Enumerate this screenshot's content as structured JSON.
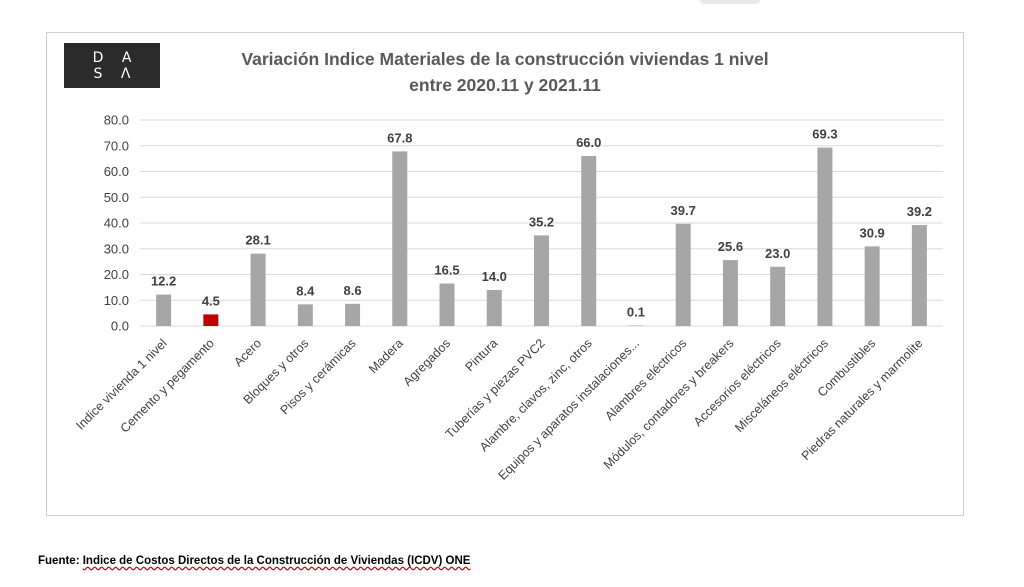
{
  "logo": {
    "line1": "D A",
    "line2": "S Λ"
  },
  "title": {
    "line1": "Variación Indice Materiales de la construcción viviendas 1 nivel",
    "line2": "entre 2020.11 y 2021.11"
  },
  "footer": {
    "label": "Fuente: ",
    "source": "Indice de Costos Directos de la Construcción de Viviendas (ICDV) ONE"
  },
  "colors": {
    "bar_default": "#a6a6a6",
    "bar_highlight": "#c00000",
    "grid": "#d9d9d9",
    "axis_text": "#404040",
    "label_text": "#404040"
  },
  "chart_data": {
    "type": "bar",
    "title": "Variación Indice Materiales de la construcción viviendas 1 nivel entre 2020.11 y 2021.11",
    "xlabel": "",
    "ylabel": "",
    "ylim": [
      0,
      80
    ],
    "yticks": [
      "0.0",
      "10.0",
      "20.0",
      "30.0",
      "40.0",
      "50.0",
      "60.0",
      "70.0",
      "80.0"
    ],
    "grid": true,
    "legend": "none",
    "highlight_index": 1,
    "categories": [
      "Indice vivienda 1 nivel",
      "Cemento y pegamento",
      "Acero",
      "Bloques y otros",
      "Pisos y cerámicas",
      "Madera",
      "Agregados",
      "Pintura",
      "Tuberías y piezas PVC2",
      "Alambre, clavos, zinc, otros",
      "Equipos y aparatos instalaciones...",
      "Alambres eléctricos",
      "Módulos, contadores y breakers",
      "Accesorios eléctricos",
      "Misceláneos eléctricos",
      "Combustibles",
      "Piedras naturales y marmolite"
    ],
    "values": [
      12.2,
      4.5,
      28.1,
      8.4,
      8.6,
      67.8,
      16.5,
      14.0,
      35.2,
      66.0,
      0.1,
      39.7,
      25.6,
      23.0,
      69.3,
      30.9,
      39.2
    ],
    "value_labels": [
      "12.2",
      "4.5",
      "28.1",
      "8.4",
      "8.6",
      "67.8",
      "16.5",
      "14.0",
      "35.2",
      "66.0",
      "0.1",
      "39.7",
      "25.6",
      "23.0",
      "69.3",
      "30.9",
      "39.2"
    ]
  }
}
